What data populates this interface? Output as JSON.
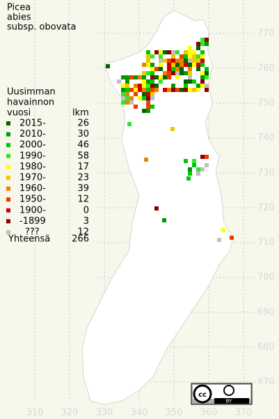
{
  "title": [
    "Picea",
    "abies",
    "subsp. obovata"
  ],
  "legend": {
    "header": [
      "Uusimman",
      "havainnon",
      "vuosi"
    ],
    "count_header": "lkm",
    "rows": [
      {
        "label": "2015-",
        "count": 26,
        "color": "#006400"
      },
      {
        "label": "2010-",
        "count": 30,
        "color": "#009a00"
      },
      {
        "label": "2000-",
        "count": 46,
        "color": "#00c800"
      },
      {
        "label": "1990-",
        "count": 58,
        "color": "#2ee82e"
      },
      {
        "label": "1980-",
        "count": 17,
        "color": "#ffff00"
      },
      {
        "label": "1970-",
        "count": 23,
        "color": "#f0c800"
      },
      {
        "label": "1960-",
        "count": 39,
        "color": "#f08000"
      },
      {
        "label": "1950-",
        "count": 12,
        "color": "#f03c00"
      },
      {
        "label": "1900-",
        "count": 0,
        "color": "#d00000"
      },
      {
        "label": "-1899",
        "count": 3,
        "color": "#8c0000"
      },
      {
        "label": "???",
        "count": 12,
        "color": "#c0c0c0"
      }
    ],
    "total": {
      "label": "Yhteensä",
      "count": 266
    }
  },
  "axes": {
    "x_ticks": [
      310,
      320,
      330,
      340,
      350,
      360,
      370
    ],
    "y_ticks": [
      770,
      760,
      750,
      740,
      730,
      720,
      710,
      700,
      690,
      680,
      670
    ]
  },
  "license": {
    "badge": "BY"
  }
}
